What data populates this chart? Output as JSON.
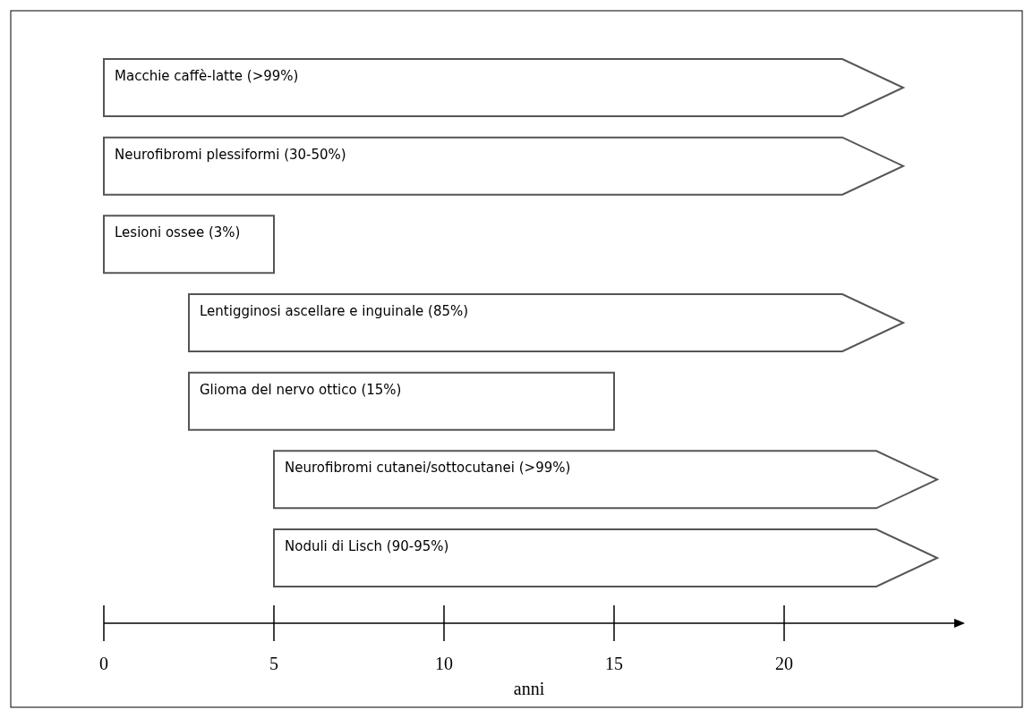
{
  "chart_data": {
    "type": "bar",
    "orientation": "horizontal",
    "xlabel": "anni",
    "categories": [
      "Macchie caffè-latte (>99%)",
      "Neurofibromi plessiformi (30-50%)",
      "Lesioni ossee (3%)",
      "Lentigginosi ascellare e inguinale (85%)",
      "Glioma del nervo ottico (15%)",
      "Neurofibromi cutanei/sottocutanei (>99%)",
      "Noduli di Lisch (90-95%)"
    ],
    "base": [
      0,
      0,
      0,
      2.5,
      2.5,
      5,
      5
    ],
    "values": [
      23.5,
      23.5,
      5,
      21,
      12.5,
      19.5,
      19.5
    ],
    "color": "#ffffff",
    "xlim": [
      0,
      25
    ],
    "xticks": [
      0,
      5,
      10,
      15,
      20
    ],
    "tick_labels": "x"
  }
}
